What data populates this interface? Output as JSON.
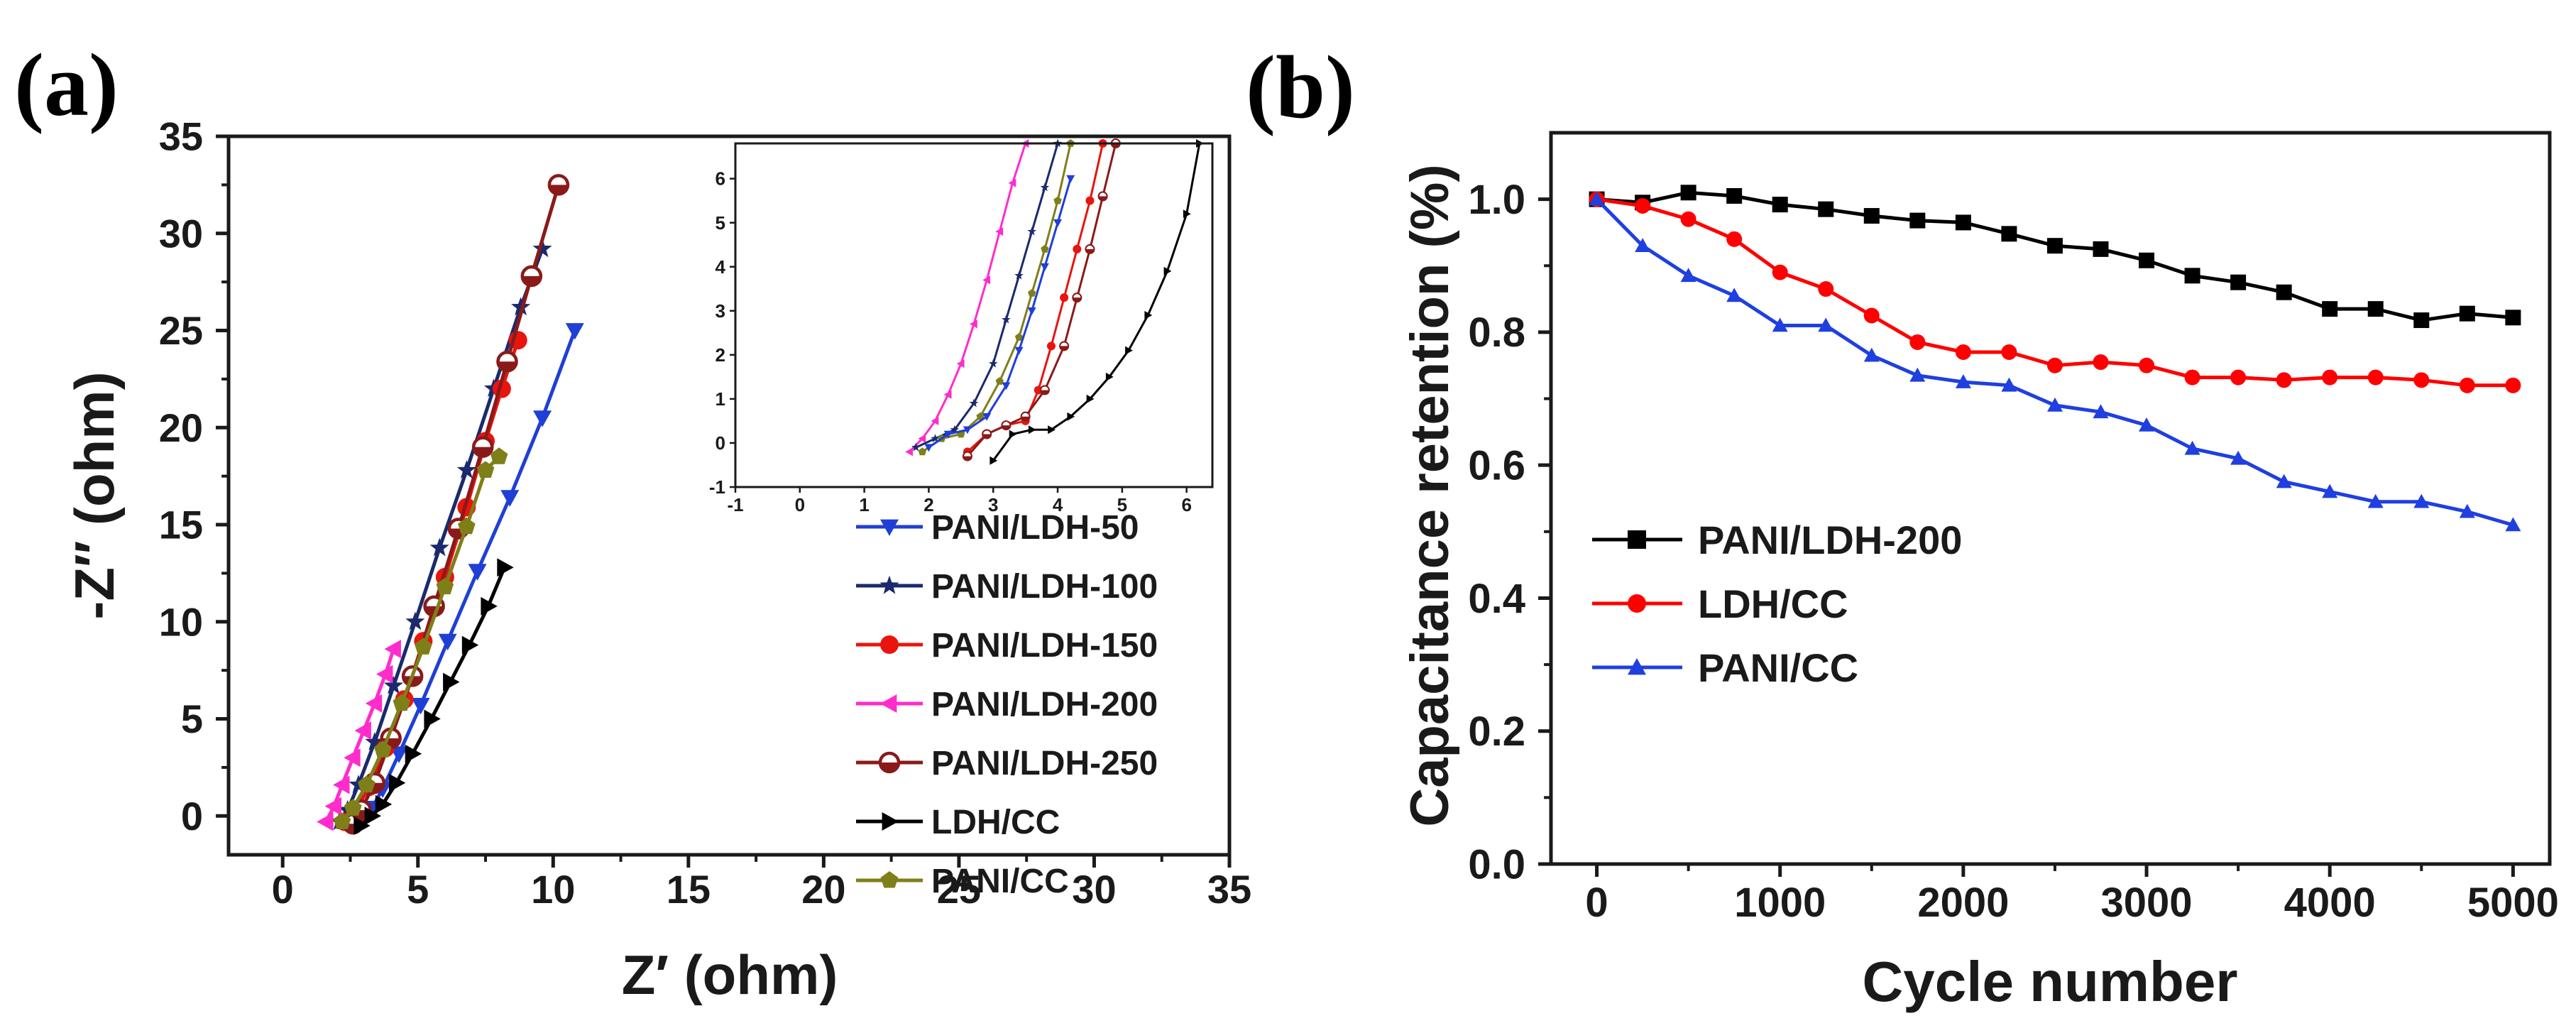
{
  "chart_data": [
    {
      "panel_label": "(a)",
      "type": "scatter",
      "xlabel": "Z′ (ohm)",
      "ylabel": "-Z″ (ohm)",
      "xlim": [
        -2,
        35
      ],
      "ylim": [
        -2,
        35
      ],
      "xticks": [
        0,
        5,
        10,
        15,
        20,
        25,
        30,
        35
      ],
      "yticks": [
        0,
        5,
        10,
        15,
        20,
        25,
        30,
        35
      ],
      "legend_position": "bottom-right",
      "series": [
        {
          "name": "PANI/LDH-50",
          "color": "#1f3fd6",
          "marker": "triangle-down",
          "x": [
            2.9,
            3.3,
            3.7,
            4.3,
            5.1,
            6.1,
            7.2,
            8.4,
            9.6,
            10.8
          ],
          "y": [
            -0.2,
            0.4,
            1.4,
            3.2,
            5.7,
            9.0,
            12.6,
            16.4,
            20.5,
            25.0
          ]
        },
        {
          "name": "PANI/LDH-100",
          "color": "#1a2a6c",
          "marker": "star",
          "x": [
            2.1,
            2.4,
            2.8,
            3.4,
            4.1,
            4.9,
            5.8,
            6.8,
            7.8,
            8.8,
            9.6
          ],
          "y": [
            -0.3,
            0.3,
            1.6,
            3.8,
            6.7,
            10.0,
            13.8,
            17.8,
            22.0,
            26.2,
            29.2
          ]
        },
        {
          "name": "PANI/LDH-150",
          "color": "#e8140e",
          "marker": "circle",
          "x": [
            2.3,
            2.7,
            3.2,
            3.8,
            4.5,
            5.2,
            6.0,
            6.8,
            7.5,
            8.1,
            8.7
          ],
          "y": [
            -0.3,
            0.3,
            1.5,
            3.5,
            6.0,
            9.0,
            12.3,
            15.9,
            19.3,
            22.0,
            24.5
          ]
        },
        {
          "name": "PANI/LDH-200",
          "color": "#ff2ccb",
          "marker": "triangle-left",
          "x": [
            1.6,
            1.9,
            2.2,
            2.6,
            3.0,
            3.4,
            3.8,
            4.1
          ],
          "y": [
            -0.3,
            0.5,
            1.6,
            3.0,
            4.4,
            5.8,
            7.3,
            8.6
          ]
        },
        {
          "name": "PANI/LDH-250",
          "color": "#8a1a1a",
          "marker": "circle-half",
          "x": [
            2.6,
            2.9,
            3.4,
            4.0,
            4.8,
            5.6,
            6.5,
            7.4,
            8.3,
            9.2,
            10.2
          ],
          "y": [
            -0.4,
            0.3,
            1.7,
            4.0,
            7.2,
            10.8,
            14.8,
            19.0,
            23.4,
            27.8,
            32.5
          ]
        },
        {
          "name": "LDH/CC",
          "color": "#000000",
          "marker": "triangle-right",
          "x": [
            2.9,
            3.3,
            3.7,
            4.2,
            4.8,
            5.5,
            6.2,
            6.9,
            7.6,
            8.2
          ],
          "y": [
            -0.5,
            0.0,
            0.6,
            1.7,
            3.2,
            5.0,
            6.9,
            8.8,
            10.8,
            12.8
          ]
        },
        {
          "name": "PANI/CC",
          "color": "#7f7f1a",
          "marker": "pentagon",
          "x": [
            2.2,
            2.6,
            3.1,
            3.7,
            4.4,
            5.2,
            6.0,
            6.8,
            7.5,
            8.0
          ],
          "y": [
            -0.3,
            0.4,
            1.6,
            3.4,
            5.8,
            8.7,
            11.8,
            14.9,
            17.8,
            18.5
          ]
        }
      ]
    },
    {
      "panel_label": "inset",
      "type": "scatter",
      "xlim": [
        -1,
        6.4
      ],
      "ylim": [
        -1,
        6.8
      ],
      "xticks": [
        -1,
        0,
        1,
        2,
        3,
        4,
        5,
        6
      ],
      "yticks": [
        -1,
        0,
        1,
        2,
        3,
        4,
        5,
        6
      ],
      "series": [
        {
          "name": "PANI/LDH-200",
          "color": "#ff2ccb",
          "marker": "triangle-left",
          "x": [
            1.7,
            1.9,
            2.1,
            2.3,
            2.5,
            2.7,
            2.9,
            3.1,
            3.3,
            3.5
          ],
          "y": [
            -0.2,
            0.1,
            0.5,
            1.1,
            1.8,
            2.7,
            3.7,
            4.8,
            5.9,
            6.8
          ]
        },
        {
          "name": "PANI/LDH-100",
          "color": "#1a2a6c",
          "marker": "star",
          "x": [
            1.8,
            2.1,
            2.4,
            2.7,
            3.0,
            3.2,
            3.4,
            3.6,
            3.8,
            4.0
          ],
          "y": [
            -0.1,
            0.1,
            0.3,
            0.9,
            1.8,
            2.8,
            3.8,
            4.8,
            5.8,
            6.8
          ]
        },
        {
          "name": "PANI/CC",
          "color": "#7f7f1a",
          "marker": "pentagon",
          "x": [
            1.9,
            2.2,
            2.5,
            2.8,
            3.1,
            3.4,
            3.6,
            3.8,
            4.0,
            4.2
          ],
          "y": [
            -0.2,
            0.1,
            0.2,
            0.6,
            1.4,
            2.4,
            3.4,
            4.4,
            5.5,
            6.8
          ]
        },
        {
          "name": "PANI/LDH-50",
          "color": "#1f3fd6",
          "marker": "triangle-down",
          "x": [
            2.0,
            2.3,
            2.6,
            2.9,
            3.2,
            3.4,
            3.6,
            3.8,
            4.0,
            4.2
          ],
          "y": [
            -0.1,
            0.2,
            0.3,
            0.6,
            1.3,
            2.1,
            3.0,
            4.0,
            5.0,
            6.0
          ]
        },
        {
          "name": "PANI/LDH-150",
          "color": "#e8140e",
          "marker": "circle",
          "x": [
            2.6,
            2.9,
            3.2,
            3.5,
            3.7,
            3.9,
            4.1,
            4.3,
            4.5,
            4.7
          ],
          "y": [
            -0.2,
            0.2,
            0.4,
            0.5,
            1.2,
            2.2,
            3.3,
            4.4,
            5.5,
            6.8
          ]
        },
        {
          "name": "PANI/LDH-250",
          "color": "#8a1a1a",
          "marker": "circle-half",
          "x": [
            2.6,
            2.9,
            3.2,
            3.5,
            3.8,
            4.1,
            4.3,
            4.5,
            4.7,
            4.9
          ],
          "y": [
            -0.3,
            0.2,
            0.4,
            0.6,
            1.2,
            2.2,
            3.3,
            4.4,
            5.6,
            6.8
          ]
        },
        {
          "name": "LDH/CC",
          "color": "#000000",
          "marker": "triangle-right",
          "x": [
            3.0,
            3.3,
            3.6,
            3.9,
            4.2,
            4.5,
            4.8,
            5.1,
            5.4,
            5.7,
            6.0,
            6.2
          ],
          "y": [
            -0.4,
            0.2,
            0.3,
            0.3,
            0.6,
            1.0,
            1.5,
            2.1,
            2.9,
            3.9,
            5.2,
            6.8
          ]
        }
      ]
    },
    {
      "panel_label": "(b)",
      "type": "line",
      "xlabel": "Cycle number",
      "ylabel": "Capacitance retention (%)",
      "xlim": [
        -250,
        5200
      ],
      "ylim": [
        0,
        1.1
      ],
      "xticks": [
        0,
        1000,
        2000,
        3000,
        4000,
        5000
      ],
      "yticks": [
        0.0,
        0.2,
        0.4,
        0.6,
        0.8,
        1.0
      ],
      "legend_position": "center-left",
      "x": [
        0,
        250,
        500,
        750,
        1000,
        1250,
        1500,
        1750,
        2000,
        2250,
        2500,
        2750,
        3000,
        3250,
        3500,
        3750,
        4000,
        4250,
        4500,
        4750,
        5000
      ],
      "series": [
        {
          "name": "PANI/LDH-200",
          "color": "#000000",
          "marker": "square",
          "values": [
            1.0,
            0.995,
            1.01,
            1.005,
            0.992,
            0.985,
            0.975,
            0.968,
            0.965,
            0.948,
            0.93,
            0.925,
            0.908,
            0.885,
            0.875,
            0.86,
            0.835,
            0.835,
            0.818,
            0.828,
            0.822
          ]
        },
        {
          "name": "LDH/CC",
          "color": "#ff0000",
          "marker": "circle",
          "values": [
            1.0,
            0.99,
            0.97,
            0.94,
            0.89,
            0.865,
            0.825,
            0.785,
            0.77,
            0.77,
            0.75,
            0.755,
            0.75,
            0.732,
            0.732,
            0.728,
            0.732,
            0.732,
            0.728,
            0.72,
            0.72
          ]
        },
        {
          "name": "PANI/CC",
          "color": "#1f3fe0",
          "marker": "triangle-up",
          "values": [
            1.0,
            0.93,
            0.885,
            0.855,
            0.81,
            0.81,
            0.765,
            0.735,
            0.725,
            0.72,
            0.69,
            0.68,
            0.66,
            0.625,
            0.61,
            0.575,
            0.56,
            0.545,
            0.545,
            0.53,
            0.51
          ]
        }
      ]
    }
  ]
}
